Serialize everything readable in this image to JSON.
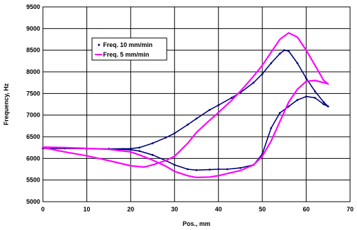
{
  "chart_data": {
    "type": "line",
    "title": "",
    "xlabel": "Pos., mm",
    "ylabel": "Frequency, Hz",
    "xlim": [
      0,
      70
    ],
    "ylim": [
      5000,
      9500
    ],
    "xticks": [
      0,
      10,
      20,
      30,
      40,
      50,
      60,
      70
    ],
    "yticks": [
      5000,
      5500,
      6000,
      6500,
      7000,
      7500,
      8000,
      8500,
      9000,
      9500
    ],
    "grid": true,
    "legend_position": "upper-left",
    "series": [
      {
        "name": "Freq. 10 mm/min",
        "color": "#000080",
        "marker": "point",
        "x": [
          0,
          5,
          10,
          15,
          20,
          22,
          25,
          28,
          30,
          33,
          35,
          38,
          40,
          43,
          45,
          48,
          50,
          52,
          54,
          55,
          56,
          58,
          60,
          62,
          64,
          65,
          64,
          62,
          60,
          58,
          56,
          54,
          52,
          50,
          48,
          45,
          42,
          40,
          38,
          35,
          33,
          30,
          28,
          25,
          22,
          20,
          15,
          10,
          5,
          0
        ],
        "y": [
          6230,
          6230,
          6225,
          6220,
          6225,
          6250,
          6350,
          6480,
          6580,
          6780,
          6920,
          7120,
          7230,
          7400,
          7520,
          7750,
          7950,
          8200,
          8420,
          8500,
          8480,
          8200,
          7850,
          7550,
          7300,
          7200,
          7250,
          7400,
          7430,
          7350,
          7200,
          7050,
          6700,
          6100,
          5850,
          5780,
          5750,
          5750,
          5740,
          5730,
          5750,
          5850,
          5950,
          6080,
          6170,
          6200,
          6220,
          6230,
          6240,
          6240
        ]
      },
      {
        "name": "Freq. 5 mm/min",
        "color": "#FF00FF",
        "marker": "none",
        "x": [
          0,
          5,
          10,
          15,
          20,
          23,
          25,
          28,
          30,
          33,
          35,
          38,
          40,
          43,
          45,
          48,
          50,
          52,
          54,
          56,
          58,
          60,
          62,
          64,
          65,
          64,
          62,
          60,
          58,
          56,
          54,
          52,
          50,
          48,
          45,
          42,
          40,
          38,
          35,
          33,
          30,
          28,
          25,
          22,
          20,
          15,
          10,
          5,
          0
        ],
        "y": [
          6250,
          6150,
          6060,
          5950,
          5830,
          5800,
          5850,
          5950,
          6050,
          6350,
          6600,
          6880,
          7060,
          7340,
          7550,
          7900,
          8150,
          8450,
          8750,
          8900,
          8800,
          8500,
          8150,
          7800,
          7720,
          7750,
          7800,
          7780,
          7600,
          7300,
          6850,
          6400,
          6050,
          5850,
          5720,
          5650,
          5600,
          5570,
          5560,
          5600,
          5700,
          5820,
          5960,
          6080,
          6150,
          6210,
          6230,
          6250,
          6260
        ]
      }
    ]
  }
}
